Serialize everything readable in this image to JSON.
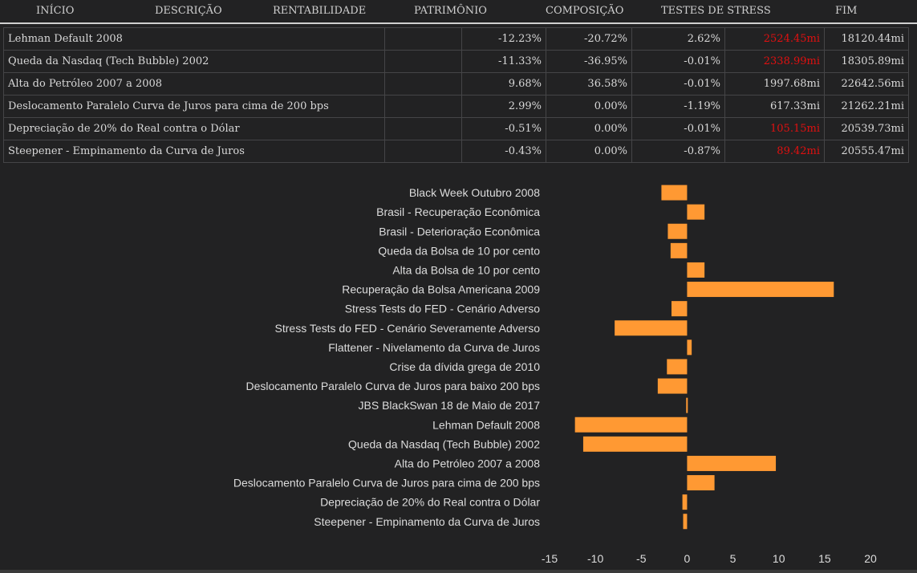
{
  "tabs": [
    {
      "label": "INÍCIO"
    },
    {
      "label": "DESCRIÇÃO"
    },
    {
      "label": "RENTABILIDADE"
    },
    {
      "label": "PATRIMÔNIO"
    },
    {
      "label": "COMPOSIÇÃO"
    },
    {
      "label": "TESTES DE STRESS"
    },
    {
      "label": "FIM"
    }
  ],
  "colors": {
    "background": "#222223",
    "bar": "#ff9933",
    "negative_text": "#e01010"
  },
  "table": {
    "rows": [
      {
        "scenario": "Lehman Default 2008",
        "blank": "",
        "c1": "-12.23%",
        "c2": "-20.72%",
        "c3": "2.62%",
        "c4": "2524.45mi",
        "c4_negative": true,
        "c5": "18120.44mi"
      },
      {
        "scenario": "Queda da Nasdaq (Tech Bubble) 2002",
        "blank": "",
        "c1": "-11.33%",
        "c2": "-36.95%",
        "c3": "-0.01%",
        "c4": "2338.99mi",
        "c4_negative": true,
        "c5": "18305.89mi"
      },
      {
        "scenario": "Alta do Petróleo 2007 a 2008",
        "blank": "",
        "c1": "9.68%",
        "c2": "36.58%",
        "c3": "-0.01%",
        "c4": "1997.68mi",
        "c4_negative": false,
        "c5": "22642.56mi"
      },
      {
        "scenario": "Deslocamento Paralelo Curva de Juros para cima de 200 bps",
        "blank": "",
        "c1": "2.99%",
        "c2": "0.00%",
        "c3": "-1.19%",
        "c4": "617.33mi",
        "c4_negative": false,
        "c5": "21262.21mi"
      },
      {
        "scenario": "Depreciação de 20% do Real contra o Dólar",
        "blank": "",
        "c1": "-0.51%",
        "c2": "0.00%",
        "c3": "-0.01%",
        "c4": "105.15mi",
        "c4_negative": true,
        "c5": "20539.73mi"
      },
      {
        "scenario": "Steepener - Empinamento da Curva de Juros",
        "blank": "",
        "c1": "-0.43%",
        "c2": "0.00%",
        "c3": "-0.87%",
        "c4": "89.42mi",
        "c4_negative": true,
        "c5": "20555.47mi"
      }
    ]
  },
  "chart_data": {
    "type": "bar",
    "orientation": "horizontal",
    "categories": [
      "Black Week Outubro 2008",
      "Brasil - Recuperação Econômica",
      "Brasil - Deterioração Econômica",
      "Queda da Bolsa de 10 por cento",
      "Alta da Bolsa de 10 por cento",
      "Recuperação da Bolsa Americana 2009",
      "Stress Tests do FED - Cenário Adverso",
      "Stress Tests do FED - Cenário Severamente Adverso",
      "Flattener - Nivelamento da Curva de Juros",
      "Crise da dívida grega de 2010",
      "Deslocamento Paralelo Curva de Juros para baixo 200 bps",
      "JBS BlackSwan 18 de Maio de 2017",
      "Lehman Default 2008",
      "Queda da Nasdaq (Tech Bubble) 2002",
      "Alta do Petróleo 2007 a 2008",
      "Deslocamento Paralelo Curva de Juros para cima de 200 bps",
      "Depreciação de 20% do Real contra o Dólar",
      "Steepener - Empinamento da Curva de Juros"
    ],
    "values": [
      -2.8,
      1.9,
      -2.1,
      -1.8,
      1.9,
      16.0,
      -1.7,
      -7.9,
      0.5,
      -2.2,
      -3.2,
      -0.1,
      -12.23,
      -11.33,
      9.68,
      2.99,
      -0.51,
      -0.43
    ],
    "xlim": [
      -15,
      20
    ],
    "xticks": [
      -15,
      -10,
      -5,
      0,
      5,
      10,
      15,
      20
    ],
    "title": "",
    "xlabel": "",
    "ylabel": "",
    "grid": false,
    "legend": "none"
  }
}
